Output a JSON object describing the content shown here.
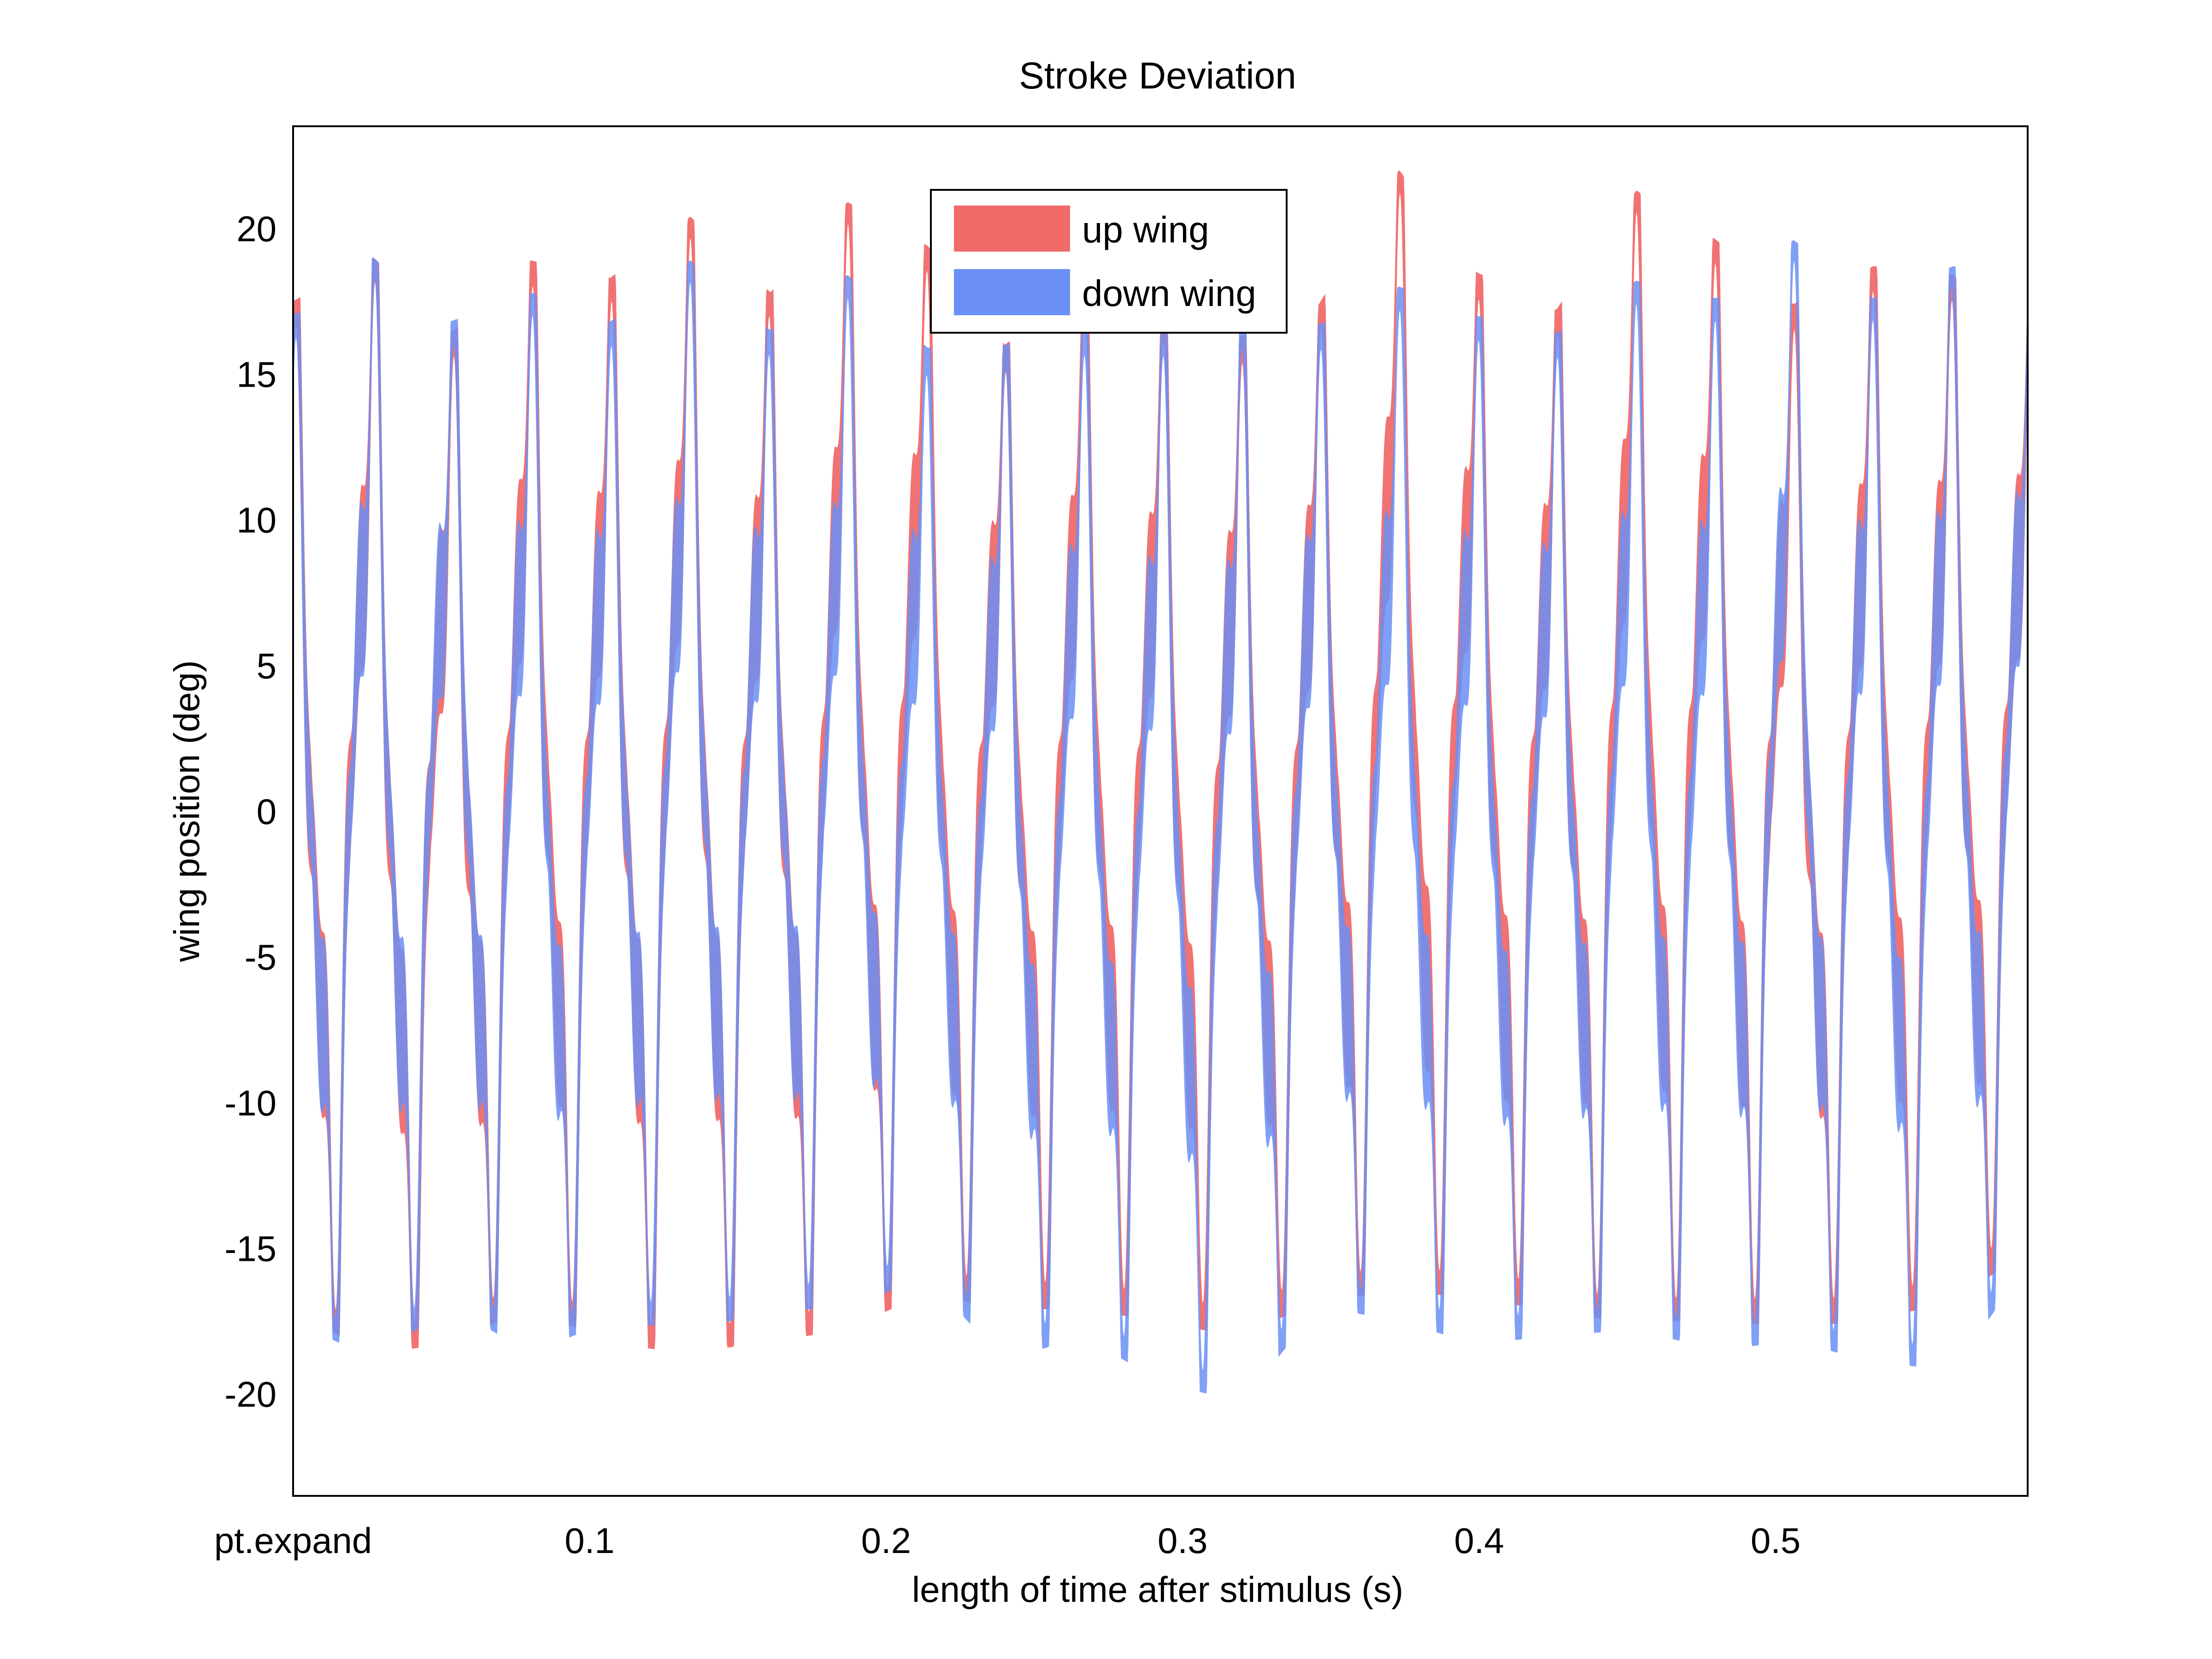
{
  "chart_data": {
    "type": "area",
    "title": "Stroke Deviation",
    "xlabel": "length of time after stimulus (s)",
    "ylabel": "wing position (deg)",
    "xlim": [
      0.0,
      0.585
    ],
    "ylim": [
      -23.5,
      23.5
    ],
    "x_ticks": [
      {
        "value": 0.0,
        "label": "pt.expand"
      },
      {
        "value": 0.1,
        "label": "0.1"
      },
      {
        "value": 0.2,
        "label": "0.2"
      },
      {
        "value": 0.3,
        "label": "0.3"
      },
      {
        "value": 0.4,
        "label": "0.4"
      },
      {
        "value": 0.5,
        "label": "0.5"
      }
    ],
    "y_ticks": [
      {
        "value": 20,
        "label": "20"
      },
      {
        "value": 15,
        "label": "15"
      },
      {
        "value": 10,
        "label": "10"
      },
      {
        "value": 5,
        "label": "5"
      },
      {
        "value": 0,
        "label": "0"
      },
      {
        "value": -5,
        "label": "-5"
      },
      {
        "value": -10,
        "label": "-10"
      },
      {
        "value": -15,
        "label": "-15"
      },
      {
        "value": -20,
        "label": "-20"
      }
    ],
    "grid": false,
    "legend_position": "top-center",
    "series": [
      {
        "name": "up wing",
        "color": "#f06a6a",
        "wingbeat_cycles": [
          {
            "t": 0.0,
            "peak": 17.5,
            "trough": -17.2
          },
          {
            "t": 0.027,
            "peak": 19.0,
            "trough": -18.6
          },
          {
            "t": 0.053,
            "peak": 16.4,
            "trough": -18.3
          },
          {
            "t": 0.08,
            "peak": 18.9,
            "trough": -17.0
          },
          {
            "t": 0.107,
            "peak": 18.3,
            "trough": -18.3
          },
          {
            "t": 0.134,
            "peak": 20.4,
            "trough": -18.6
          },
          {
            "t": 0.161,
            "peak": 17.8,
            "trough": -18.2
          },
          {
            "t": 0.187,
            "peak": 20.9,
            "trough": -17.8
          },
          {
            "t": 0.214,
            "peak": 19.4,
            "trough": -16.5
          },
          {
            "t": 0.24,
            "peak": 16.0,
            "trough": -17.2
          },
          {
            "t": 0.266,
            "peak": 18.0,
            "trough": -17.0
          },
          {
            "t": 0.293,
            "peak": 17.0,
            "trough": -17.6
          },
          {
            "t": 0.32,
            "peak": 16.3,
            "trough": -18.0
          },
          {
            "t": 0.346,
            "peak": 17.4,
            "trough": -16.8
          },
          {
            "t": 0.373,
            "peak": 22.0,
            "trough": -16.5
          },
          {
            "t": 0.399,
            "peak": 18.5,
            "trough": -16.7
          },
          {
            "t": 0.426,
            "peak": 17.2,
            "trough": -17.2
          },
          {
            "t": 0.453,
            "peak": 21.3,
            "trough": -17.6
          },
          {
            "t": 0.48,
            "peak": 19.6,
            "trough": -17.4
          },
          {
            "t": 0.506,
            "peak": 17.4,
            "trough": -17.8
          },
          {
            "t": 0.533,
            "peak": 18.7,
            "trough": -17.4
          },
          {
            "t": 0.56,
            "peak": 18.4,
            "trough": -16.9
          },
          {
            "t": 0.585,
            "peak": 18.0,
            "trough": -15.0
          }
        ]
      },
      {
        "name": "down wing",
        "color": "#6a8ff5",
        "wingbeat_cycles": [
          {
            "t": 0.0,
            "peak": 17.0,
            "trough": -17.5
          },
          {
            "t": 0.027,
            "peak": 19.0,
            "trough": -18.8
          },
          {
            "t": 0.053,
            "peak": 16.8,
            "trough": -17.0
          },
          {
            "t": 0.08,
            "peak": 17.8,
            "trough": -18.6
          },
          {
            "t": 0.107,
            "peak": 16.8,
            "trough": -17.5
          },
          {
            "t": 0.134,
            "peak": 18.9,
            "trough": -17.8
          },
          {
            "t": 0.161,
            "peak": 16.5,
            "trough": -17.2
          },
          {
            "t": 0.187,
            "peak": 18.4,
            "trough": -17.0
          },
          {
            "t": 0.214,
            "peak": 15.9,
            "trough": -16.0
          },
          {
            "t": 0.24,
            "peak": 16.0,
            "trough": -18.9
          },
          {
            "t": 0.266,
            "peak": 16.5,
            "trough": -18.0
          },
          {
            "t": 0.293,
            "peak": 16.4,
            "trough": -19.6
          },
          {
            "t": 0.32,
            "peak": 16.6,
            "trough": -20.3
          },
          {
            "t": 0.346,
            "peak": 16.7,
            "trough": -17.0
          },
          {
            "t": 0.373,
            "peak": 18.0,
            "trough": -17.5
          },
          {
            "t": 0.399,
            "peak": 17.0,
            "trough": -18.3
          },
          {
            "t": 0.426,
            "peak": 16.4,
            "trough": -18.0
          },
          {
            "t": 0.453,
            "peak": 18.2,
            "trough": -17.8
          },
          {
            "t": 0.48,
            "peak": 17.6,
            "trough": -18.5
          },
          {
            "t": 0.506,
            "peak": 19.6,
            "trough": -18.2
          },
          {
            "t": 0.533,
            "peak": 17.6,
            "trough": -18.9
          },
          {
            "t": 0.56,
            "peak": 18.7,
            "trough": -19.2
          },
          {
            "t": 0.585,
            "peak": 18.0,
            "trough": -15.5
          }
        ]
      }
    ]
  }
}
